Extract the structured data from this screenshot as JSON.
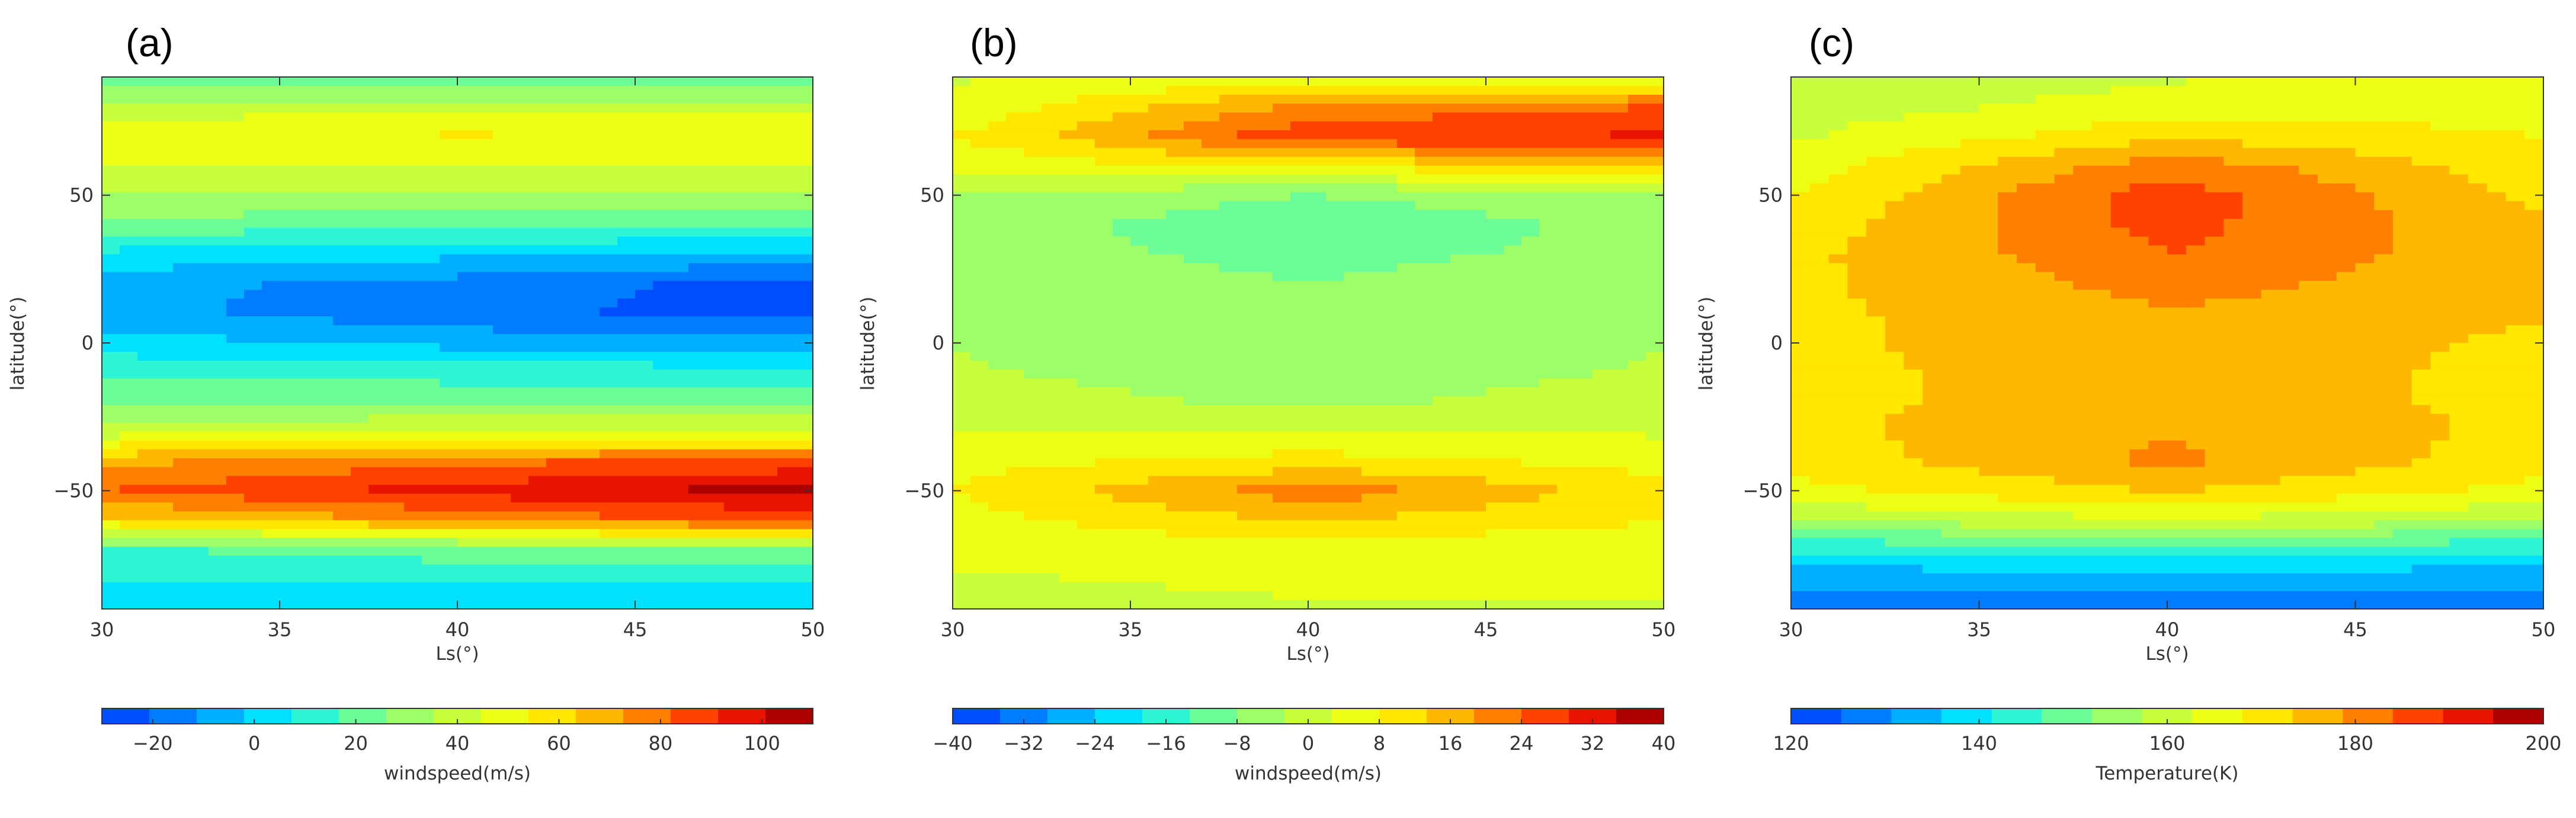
{
  "chart_data": [
    {
      "type": "heatmap",
      "panel_label": "(a)",
      "xlabel": "Ls(°)",
      "ylabel": "latitude(°)",
      "xlim": [
        30,
        50
      ],
      "ylim": [
        -90,
        90
      ],
      "xticks": [
        30,
        35,
        40,
        45,
        50
      ],
      "yticks": [
        -50,
        0,
        50
      ],
      "colorbar": {
        "label": "windspeed(m/s)",
        "min": -30,
        "max": 110,
        "ticks": [
          -20,
          0,
          20,
          40,
          60,
          80,
          100
        ],
        "tick_labels": [
          "−20",
          "0",
          "20",
          "40",
          "60",
          "80",
          "100"
        ]
      },
      "field_profile": {
        "description_units": "m/s",
        "latitude": [
          -90,
          -80,
          -70,
          -60,
          -50,
          -40,
          -30,
          -20,
          -10,
          0,
          10,
          20,
          30,
          40,
          50,
          60,
          70,
          80,
          90
        ],
        "Ls_30": [
          5,
          8,
          15,
          60,
          82,
          70,
          40,
          25,
          15,
          2,
          -8,
          -8,
          5,
          22,
          35,
          45,
          50,
          40,
          15
        ],
        "Ls_40": [
          5,
          8,
          22,
          75,
          95,
          80,
          45,
          25,
          12,
          -5,
          -18,
          -15,
          0,
          20,
          35,
          45,
          55,
          42,
          15
        ],
        "Ls_50": [
          5,
          8,
          25,
          85,
          105,
          85,
          45,
          25,
          12,
          -8,
          -25,
          -25,
          -5,
          18,
          35,
          45,
          52,
          42,
          15
        ]
      }
    },
    {
      "type": "heatmap",
      "panel_label": "(b)",
      "xlabel": "Ls(°)",
      "ylabel": "latitude(°)",
      "xlim": [
        30,
        50
      ],
      "ylim": [
        -90,
        90
      ],
      "xticks": [
        30,
        35,
        40,
        45,
        50
      ],
      "yticks": [
        -50,
        0,
        50
      ],
      "colorbar": {
        "label": "windspeed(m/s)",
        "min": -40,
        "max": 40,
        "ticks": [
          -40,
          -32,
          -24,
          -16,
          -8,
          0,
          8,
          16,
          24,
          32,
          40
        ],
        "tick_labels": [
          "−40",
          "−32",
          "−24",
          "−16",
          "−8",
          "0",
          "8",
          "16",
          "24",
          "32",
          "40"
        ]
      },
      "field_profile": {
        "description_units": "m/s",
        "latitude": [
          -90,
          -80,
          -70,
          -60,
          -50,
          -40,
          -30,
          -20,
          -10,
          0,
          10,
          20,
          30,
          40,
          50,
          60,
          70,
          80,
          90
        ],
        "Ls_30": [
          0,
          2,
          4,
          6,
          8,
          6,
          3,
          0,
          -2,
          -3,
          -4,
          -4,
          -5,
          -5,
          -3,
          4,
          8,
          4,
          2
        ],
        "Ls_40": [
          2,
          4,
          5,
          14,
          22,
          10,
          3,
          -4,
          -6,
          -5,
          -6,
          -8,
          -10,
          -12,
          -8,
          10,
          28,
          20,
          5
        ],
        "Ls_50": [
          2,
          4,
          4,
          8,
          10,
          6,
          2,
          0,
          -2,
          -3,
          -4,
          -4,
          -6,
          -6,
          -4,
          12,
          30,
          24,
          4
        ]
      }
    },
    {
      "type": "heatmap",
      "panel_label": "(c)",
      "xlabel": "Ls(°)",
      "ylabel": "latitude(°)",
      "xlim": [
        30,
        50
      ],
      "ylim": [
        -90,
        90
      ],
      "xticks": [
        30,
        35,
        40,
        45,
        50
      ],
      "yticks": [
        -50,
        0,
        50
      ],
      "colorbar": {
        "label": "Temperature(K)",
        "min": 120,
        "max": 200,
        "ticks": [
          120,
          140,
          160,
          180,
          200
        ],
        "tick_labels": [
          "120",
          "140",
          "160",
          "180",
          "200"
        ]
      },
      "field_profile": {
        "description_units": "K",
        "latitude": [
          -90,
          -80,
          -70,
          -60,
          -50,
          -40,
          -30,
          -20,
          -10,
          0,
          10,
          20,
          30,
          40,
          50,
          60,
          70,
          80,
          90
        ],
        "Ls_30": [
          128,
          132,
          142,
          158,
          166,
          170,
          172,
          172,
          172,
          172,
          172,
          172,
          172,
          170,
          168,
          165,
          162,
          160,
          158
        ],
        "Ls_40": [
          128,
          133,
          144,
          162,
          174,
          180,
          178,
          176,
          176,
          177,
          178,
          181,
          184,
          186,
          187,
          182,
          172,
          165,
          162
        ],
        "Ls_50": [
          128,
          132,
          142,
          158,
          166,
          170,
          172,
          172,
          172,
          172,
          174,
          175,
          175,
          174,
          172,
          170,
          168,
          166,
          168
        ]
      }
    }
  ]
}
